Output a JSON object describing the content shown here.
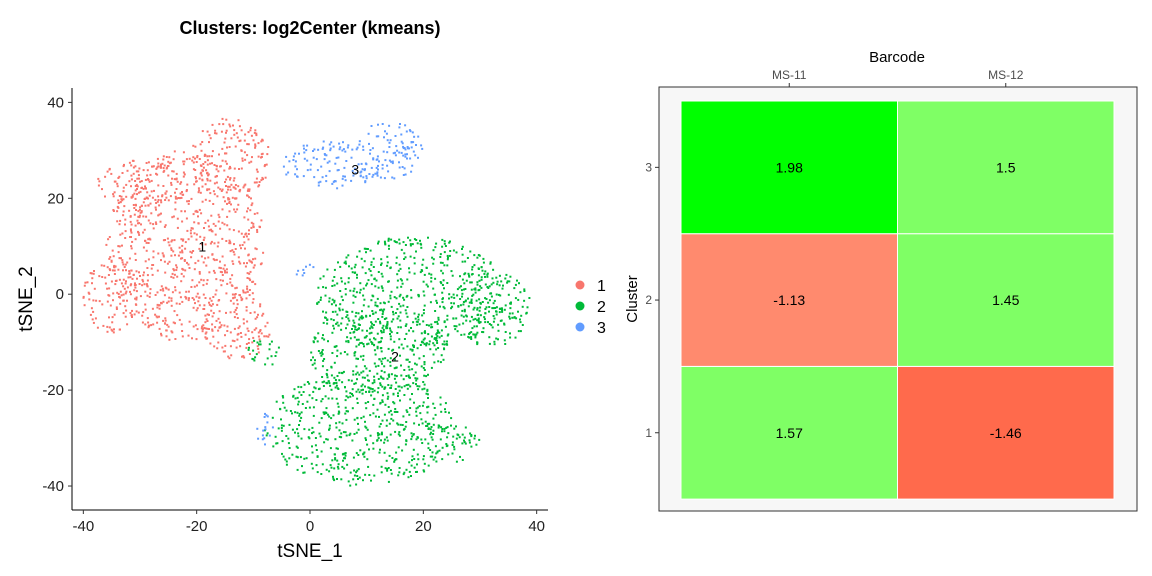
{
  "chart_data": [
    {
      "type": "scatter",
      "title": "Clusters: log2Center (kmeans)",
      "xlabel": "tSNE_1",
      "ylabel": "tSNE_2",
      "xlim": [
        -42,
        42
      ],
      "ylim": [
        -45,
        43
      ],
      "xticks": [
        -40,
        -20,
        0,
        20,
        40
      ],
      "yticks": [
        -40,
        -20,
        0,
        20,
        40
      ],
      "xtick_labels": [
        "-40",
        "-20",
        "0",
        "20",
        "40"
      ],
      "ytick_labels": [
        "-40",
        "-20",
        "0",
        "20",
        "40"
      ],
      "grid": false,
      "legend_position": "right",
      "series": [
        {
          "name": "1",
          "color": "#F8766D",
          "label_at": [
            -19,
            10
          ],
          "regions": [
            {
              "cx": -22,
              "cy": 10,
              "rx": 14,
              "ry": 20
            },
            {
              "cx": -30,
              "cy": 22,
              "rx": 8,
              "ry": 6
            },
            {
              "cx": -14,
              "cy": 28,
              "rx": 7,
              "ry": 9
            },
            {
              "cx": -35,
              "cy": 0,
              "rx": 5,
              "ry": 8
            },
            {
              "cx": -13,
              "cy": -7,
              "rx": 6,
              "ry": 7
            }
          ]
        },
        {
          "name": "2",
          "color": "#00BA38",
          "label_at": [
            15,
            -13
          ],
          "regions": [
            {
              "cx": 18,
              "cy": 0,
              "rx": 17,
              "ry": 12
            },
            {
              "cx": 9,
              "cy": -28,
              "rx": 17,
              "ry": 12
            },
            {
              "cx": 12,
              "cy": -12,
              "rx": 12,
              "ry": 10
            },
            {
              "cx": 32,
              "cy": -3,
              "rx": 7,
              "ry": 8
            },
            {
              "cx": 26,
              "cy": -31,
              "rx": 4,
              "ry": 4
            },
            {
              "cx": -8,
              "cy": -12,
              "rx": 3,
              "ry": 3
            }
          ]
        },
        {
          "name": "3",
          "color": "#619CFF",
          "label_at": [
            8,
            26
          ],
          "regions": [
            {
              "cx": 4,
              "cy": 27,
              "rx": 9,
              "ry": 5
            },
            {
              "cx": 14,
              "cy": 30,
              "rx": 6,
              "ry": 6
            },
            {
              "cx": -1,
              "cy": 5,
              "rx": 2,
              "ry": 1.5
            },
            {
              "cx": -8,
              "cy": -28,
              "rx": 1.5,
              "ry": 4
            }
          ]
        }
      ]
    },
    {
      "type": "heatmap",
      "title": "Barcode",
      "xlabel": "Barcode",
      "ylabel": "Cluster",
      "x_position": "top",
      "x": [
        "MS-11",
        "MS-12"
      ],
      "y": [
        "1",
        "2",
        "3"
      ],
      "grid": false,
      "values": [
        {
          "cluster": "1",
          "barcode": "MS-11",
          "value": 1.57,
          "label": "1.57",
          "color": "#7FFF65"
        },
        {
          "cluster": "1",
          "barcode": "MS-12",
          "value": -1.46,
          "label": "-1.46",
          "color": "#FF6A4C"
        },
        {
          "cluster": "2",
          "barcode": "MS-11",
          "value": -1.13,
          "label": "-1.13",
          "color": "#FF8A6E"
        },
        {
          "cluster": "2",
          "barcode": "MS-12",
          "value": 1.45,
          "label": "1.45",
          "color": "#7FFF65"
        },
        {
          "cluster": "3",
          "barcode": "MS-11",
          "value": 1.98,
          "label": "1.98",
          "color": "#00FF00"
        },
        {
          "cluster": "3",
          "barcode": "MS-12",
          "value": 1.5,
          "label": "1.5",
          "color": "#7FFF65"
        }
      ]
    }
  ]
}
